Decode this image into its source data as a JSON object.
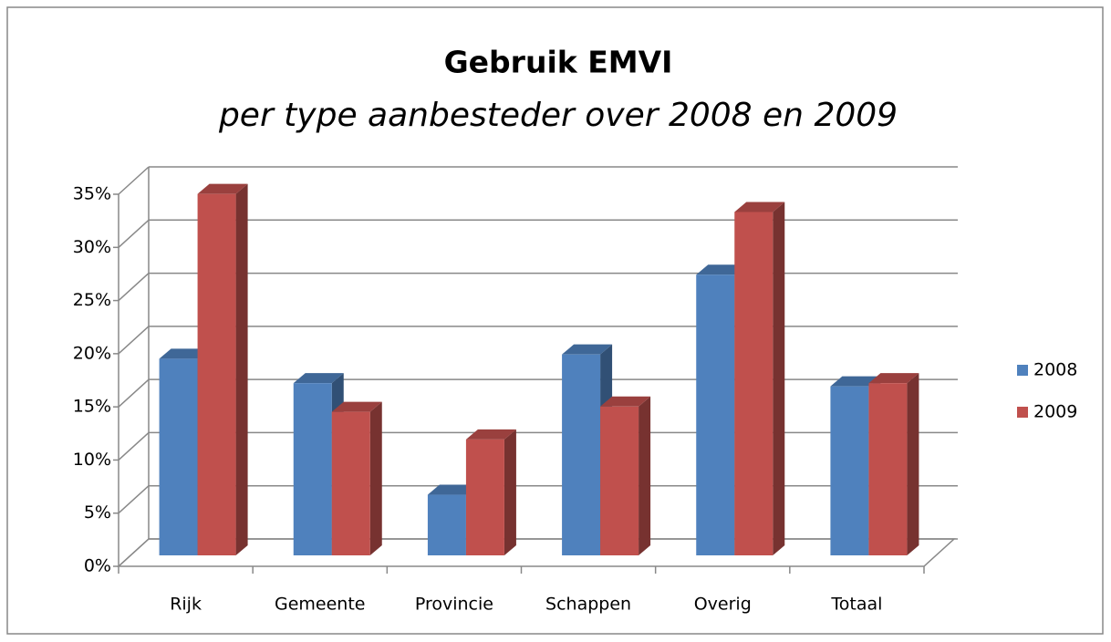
{
  "chart_data": {
    "type": "bar3d",
    "title": "Gebruik EMVI",
    "subtitle": "per type aanbesteder over 2008 en 2009",
    "categories": [
      "Rijk",
      "Gemeente",
      "Provincie",
      "Schappen",
      "Overig",
      "Totaal"
    ],
    "series": [
      {
        "name": "2008",
        "color": "#4f81bd",
        "values": [
          18.5,
          16.2,
          5.7,
          18.9,
          26.4,
          15.9
        ]
      },
      {
        "name": "2009",
        "color": "#c0504d",
        "values": [
          34.0,
          13.5,
          10.9,
          14.0,
          32.3,
          16.2
        ]
      }
    ],
    "ylim": [
      0,
      35
    ],
    "yticks": [
      {
        "value": 0,
        "label": "0%"
      },
      {
        "value": 5,
        "label": "5%"
      },
      {
        "value": 10,
        "label": "10%"
      },
      {
        "value": 15,
        "label": "15%"
      },
      {
        "value": 20,
        "label": "20%"
      },
      {
        "value": 25,
        "label": "25%"
      },
      {
        "value": 30,
        "label": "30%"
      },
      {
        "value": 35,
        "label": "35%"
      }
    ],
    "grid": true,
    "legend": "right"
  }
}
